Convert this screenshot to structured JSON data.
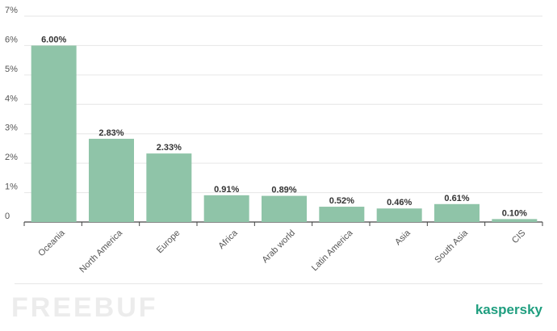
{
  "colors": {
    "bar": "#8fc4a8",
    "axis": "#444444",
    "grid": "#e6e6e6",
    "brand": "#1f9e7f"
  },
  "chart_data": {
    "type": "bar",
    "categories": [
      "Oceania",
      "North America",
      "Europe",
      "Africa",
      "Arab world",
      "Latin America",
      "Asia",
      "South Asia",
      "CIS"
    ],
    "values": [
      6.0,
      2.83,
      2.33,
      0.91,
      0.89,
      0.52,
      0.46,
      0.61,
      0.1
    ],
    "data_labels": [
      "6.00%",
      "2.83%",
      "2.33%",
      "0.91%",
      "0.89%",
      "0.52%",
      "0.46%",
      "0.61%",
      "0.10%"
    ],
    "yticks": [
      0,
      1,
      2,
      3,
      4,
      5,
      6,
      7
    ],
    "ytick_labels": [
      "0",
      "1%",
      "2%",
      "3%",
      "4%",
      "5%",
      "6%",
      "7%"
    ],
    "ylim": [
      0,
      7
    ],
    "grid": true,
    "xlabel": "",
    "ylabel": "",
    "title": ""
  },
  "footer": {
    "watermark": "FREEBUF",
    "brand": "kaspersky"
  }
}
